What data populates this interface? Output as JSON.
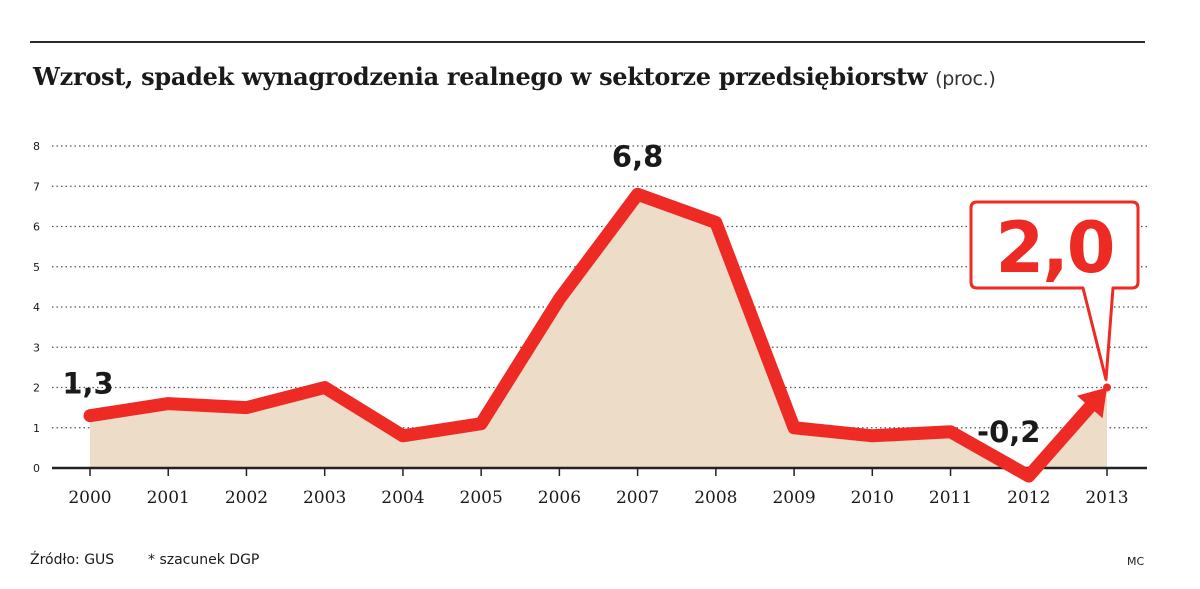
{
  "title": "Wzrost, spadek wynagrodzenia realnego w sektorze przedsiębiorstw",
  "unit": "(proc.)",
  "footer": {
    "source": "Źródło: GUS",
    "note": "* szacunek DGP",
    "author": "MC"
  },
  "colors": {
    "line": "#ee2a24",
    "fill": "#ecdcc8",
    "text": "#1a1a1a"
  },
  "chart_data": {
    "type": "area",
    "x": [
      "2000",
      "2001",
      "2002",
      "2003",
      "2004",
      "2005",
      "2006",
      "2007",
      "2008",
      "2009",
      "2010",
      "2011",
      "2012",
      "2013"
    ],
    "values": [
      1.3,
      1.6,
      1.5,
      2.0,
      0.8,
      1.1,
      4.2,
      6.8,
      6.1,
      1.0,
      0.8,
      0.9,
      -0.2,
      2.0
    ],
    "ylim": [
      0,
      8
    ],
    "yticks": [
      "0",
      "1",
      "2",
      "3",
      "4",
      "5",
      "6",
      "7",
      "8"
    ],
    "grid": true,
    "annotations": [
      {
        "x": "2000",
        "label": "1,3"
      },
      {
        "x": "2007",
        "label": "6,8"
      },
      {
        "x": "2012",
        "label": "-0,2"
      },
      {
        "x": "2013",
        "label": "2,0",
        "style": "callout"
      }
    ]
  }
}
